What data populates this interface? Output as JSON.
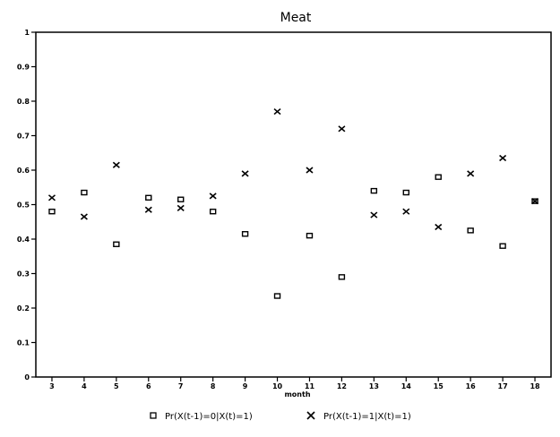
{
  "chart_data": {
    "type": "scatter",
    "title": "Meat",
    "xlabel": "month",
    "ylabel": "",
    "xlim": [
      2.5,
      18.5
    ],
    "ylim": [
      0,
      1
    ],
    "x_ticks": [
      3,
      4,
      5,
      6,
      7,
      8,
      9,
      10,
      11,
      12,
      13,
      14,
      15,
      16,
      17,
      18
    ],
    "y_ticks": [
      0,
      0.1,
      0.2,
      0.3,
      0.4,
      0.5,
      0.6,
      0.7,
      0.8,
      0.9,
      1
    ],
    "x_tick_labels": [
      "3",
      "4",
      "5",
      "6",
      "7",
      "8",
      "9",
      "10",
      "11",
      "12",
      "13",
      "14",
      "15",
      "16",
      "17",
      "18"
    ],
    "y_tick_labels": [
      "0",
      "0.1",
      "0.2",
      "0.3",
      "0.4",
      "0.5",
      "0.6",
      "0.7",
      "0.8",
      "0.9",
      "1"
    ],
    "grid": false,
    "legend_position": "bottom",
    "series": [
      {
        "name": "Pr(X(t-1)=0|X(t)=1)",
        "marker": "square",
        "x": [
          3,
          4,
          5,
          6,
          7,
          8,
          9,
          10,
          11,
          12,
          13,
          14,
          15,
          16,
          17,
          18
        ],
        "y": [
          0.48,
          0.535,
          0.385,
          0.52,
          0.515,
          0.48,
          0.415,
          0.235,
          0.41,
          0.29,
          0.54,
          0.535,
          0.58,
          0.425,
          0.38,
          0.51
        ]
      },
      {
        "name": "Pr(X(t-1)=1|X(t)=1)",
        "marker": "x",
        "x": [
          3,
          4,
          5,
          6,
          7,
          8,
          9,
          10,
          11,
          12,
          13,
          14,
          15,
          16,
          17,
          18
        ],
        "y": [
          0.52,
          0.465,
          0.615,
          0.485,
          0.49,
          0.525,
          0.59,
          0.77,
          0.6,
          0.72,
          0.47,
          0.48,
          0.435,
          0.59,
          0.635,
          0.51
        ]
      }
    ]
  }
}
